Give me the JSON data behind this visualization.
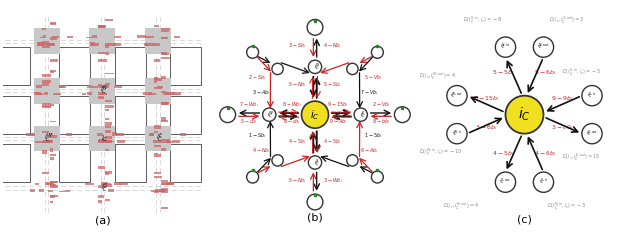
{
  "fig_width": 6.3,
  "fig_height": 2.34,
  "dpi": 100,
  "bg_color": "#ffffff",
  "panel_labels": [
    "(a)",
    "(b)",
    "(c)"
  ],
  "panel_a": {
    "bg_color": "#ffffff",
    "intersection_color": "#c8c8c8",
    "block_color": "#ffffff",
    "block_edge_color": "#444444",
    "traffic_color": "#cc6666",
    "dashed_color": "#aaaaaa"
  },
  "panel_b": {
    "center_color": "#f0e020",
    "node_color": "#ffffff",
    "node_edge_color": "#333333",
    "black": "#111111",
    "red": "#cc2222",
    "green": "#228822"
  },
  "panel_c": {
    "center_color": "#f0e020",
    "node_color": "#ffffff",
    "node_edge_color": "#333333",
    "black": "#111111",
    "red": "#cc2222",
    "gray": "#888888"
  }
}
